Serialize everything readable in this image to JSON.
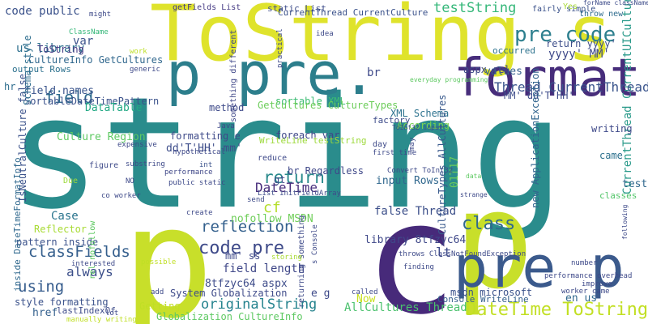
{
  "word_cloud": {
    "words": [
      {
        "text": "string",
        "color": "#2a8c8c",
        "rot": 0
      },
      {
        "text": "p",
        "color": "#c8df2a",
        "rot": 0
      },
      {
        "text": "c",
        "color": "#472a7a",
        "rot": 0
      },
      {
        "text": "p",
        "color": "#c8df2a",
        "rot": 0
      },
      {
        "text": "ToString s",
        "color": "#dfe32c",
        "rot": 0
      },
      {
        "text": "p pre.",
        "color": "#2c7e8c",
        "rot": 0
      },
      {
        "text": "pre p",
        "color": "#3b5a8c",
        "rot": 0
      },
      {
        "text": "format",
        "color": "#472d7b",
        "rot": 0
      },
      {
        "text": "pre code",
        "color": "#2d7f8e",
        "rot": 0
      },
      {
        "text": "CurrentThread CurrentUICulture",
        "color": "#2a9a8a",
        "rot": -90
      },
      {
        "text": "DateTime ToString",
        "color": "#c2df23",
        "rot": 0
      },
      {
        "text": "code pre",
        "color": "#3e4a89",
        "rot": 0
      },
      {
        "text": "reflection",
        "color": "#34608d",
        "rot": 0
      },
      {
        "text": "classFields",
        "color": "#355f8d",
        "rot": 0
      },
      {
        "text": "return",
        "color": "#2a8a8c",
        "rot": 0
      },
      {
        "text": "class",
        "color": "#30698e",
        "rot": 0
      },
      {
        "text": "cf",
        "color": "#b5de2b",
        "rot": 0
      },
      {
        "text": "testString",
        "color": "#35b779",
        "rot": 0
      },
      {
        "text": "Thread CurrentThread",
        "color": "#3a548c",
        "rot": 0
      },
      {
        "text": "always",
        "color": "#3c4f8a",
        "rot": 0
      },
      {
        "text": "using",
        "color": "#365c8d",
        "rot": 0
      },
      {
        "text": "field",
        "color": "#2f6b8e",
        "rot": 0
      },
      {
        "text": "var",
        "color": "#3b528b",
        "rot": 0
      },
      {
        "text": "originalString",
        "color": "#25838e",
        "rot": 0
      },
      {
        "text": "DateTime",
        "color": "#472d7b",
        "rot": 0
      },
      {
        "text": "yyyy' MM'",
        "color": "#3e4989",
        "rot": 0
      },
      {
        "text": "return yyyy'",
        "color": "#3d4e8a",
        "rot": 0
      },
      {
        "text": "MM' dd'T'HH'",
        "color": "#3e4c8a",
        "rot": 0
      },
      {
        "text": "code public",
        "color": "#3b528b",
        "rot": 0
      },
      {
        "text": "us library",
        "color": "#2d708e",
        "rot": 0
      },
      {
        "text": "field names",
        "color": "#3a548c",
        "rot": 0
      },
      {
        "text": "SortableDateTimePattern",
        "color": "#3b528b",
        "rot": 0
      },
      {
        "text": "CultureInfo GetCultures",
        "color": "#31688e",
        "rot": 0
      },
      {
        "text": "output Rows",
        "color": "#2c718e",
        "rot": 0
      },
      {
        "text": "ToString",
        "color": "#443983",
        "rot": 0
      },
      {
        "text": "DataTable",
        "color": "#22a884",
        "rot": 0
      },
      {
        "text": "IsNeutralCulture false",
        "color": "#3b528b",
        "rot": -90
      },
      {
        "text": "Culture Region",
        "color": "#5ec962",
        "rot": 0
      },
      {
        "text": "formatting e",
        "color": "#3e4a89",
        "rot": 0
      },
      {
        "text": "dd'T'HH' mm'",
        "color": "#3d4d8a",
        "rot": 0
      },
      {
        "text": "foreach var",
        "color": "#3f4788",
        "rot": 0
      },
      {
        "text": "XML Schema",
        "color": "#2c728e",
        "rot": 0
      },
      {
        "text": "sortable XML",
        "color": "#3dbc74",
        "rot": 0
      },
      {
        "text": "GetCultures CultureTypes",
        "color": "#6ccd5a",
        "rot": 0
      },
      {
        "text": "According",
        "color": "#7ad151",
        "rot": 0
      },
      {
        "text": "method",
        "color": "#3e4a89",
        "rot": 0
      },
      {
        "text": "br Regardless",
        "color": "#3f4889",
        "rot": 0
      },
      {
        "text": "WriteLine testString",
        "color": "#9dd93b",
        "rot": 0
      },
      {
        "text": "factory",
        "color": "#3e4c8a",
        "rot": 0
      },
      {
        "text": "01T17",
        "color": "#6ccd5a",
        "rot": -90
      },
      {
        "text": "CultureTypes AllCultures",
        "color": "#38598c",
        "rot": -90
      },
      {
        "text": "new ApplicationException",
        "color": "#32658e",
        "rot": -90
      },
      {
        "text": "values",
        "color": "#34608d",
        "rot": 0
      },
      {
        "text": "aspx rel",
        "color": "#3e4a89",
        "rot": 0
      },
      {
        "text": "occurred",
        "color": "#2c728e",
        "rot": 0
      },
      {
        "text": "Case",
        "color": "#2b758e",
        "rot": 0
      },
      {
        "text": "Reflector",
        "color": "#a8db34",
        "rot": 0
      },
      {
        "text": "pattern inside",
        "color": "#3b528b",
        "rot": 0
      },
      {
        "text": "field length",
        "color": "#3f4788",
        "rot": 0
      },
      {
        "text": "8tfzyc64 aspx",
        "color": "#3e4c8a",
        "rot": 0
      },
      {
        "text": "System Globalization",
        "color": "#3e4a89",
        "rot": 0
      },
      {
        "text": "Getting",
        "color": "#c0df25",
        "rot": 0
      },
      {
        "text": "Globalization CultureInfo",
        "color": "#5ec962",
        "rot": 0
      },
      {
        "text": "lastIndexOf",
        "color": "#3e4c8a",
        "rot": 0
      },
      {
        "text": "href",
        "color": "#34608d",
        "rot": 0
      },
      {
        "text": "style formatting",
        "color": "#3b528b",
        "rot": 0
      },
      {
        "text": "inside DateTimeFormatInfo",
        "color": "#30698e",
        "rot": -90
      },
      {
        "text": "AllCultures Thread",
        "color": "#4ac16d",
        "rot": 0
      },
      {
        "text": "library 8tfzyc64",
        "color": "#3f4889",
        "rot": 0
      },
      {
        "text": "false Thread",
        "color": "#3c4f8a",
        "rot": 0
      },
      {
        "text": "input Rows",
        "color": "#31688e",
        "rot": 0
      },
      {
        "text": "mm' ss",
        "color": "#3e4989",
        "rot": 0
      },
      {
        "text": "nofollow MSDN",
        "color": "#6ece58",
        "rot": 0
      },
      {
        "text": "msdn microsoft",
        "color": "#3b528b",
        "rot": 0
      },
      {
        "text": "Console WriteLine",
        "color": "#35608d",
        "rot": 0
      },
      {
        "text": "lt",
        "color": "#3e4a89",
        "rot": 0
      },
      {
        "text": "e g",
        "color": "#3e4989",
        "rot": 0
      },
      {
        "text": "en us",
        "color": "#31688e",
        "rot": 0
      },
      {
        "text": "Now",
        "color": "#c8e020",
        "rot": 0
      },
      {
        "text": "came",
        "color": "#2d718e",
        "rot": 0
      },
      {
        "text": "test",
        "color": "#31688e",
        "rot": 0
      },
      {
        "text": "writing",
        "color": "#3e4989",
        "rot": 0
      },
      {
        "text": "classes",
        "color": "#52c569",
        "rot": 0
      },
      {
        "text": "Schema style",
        "color": "#2e6e8e",
        "rot": -90
      },
      {
        "text": "hr",
        "color": "#2e6d8e",
        "rot": 0
      },
      {
        "text": "rel nofollow",
        "color": "#5ec962",
        "rot": -90
      },
      {
        "text": "returning something",
        "color": "#3e4a89",
        "rot": -90
      },
      {
        "text": "something different",
        "color": "#3f4788",
        "rot": -90
      },
      {
        "text": "static List",
        "color": "#3e4c8a",
        "rot": 0
      },
      {
        "text": "CurrentThread CurrentCulture",
        "color": "#3b528b",
        "rot": 0
      },
      {
        "text": "getFields List",
        "color": "#443983",
        "rot": 0
      },
      {
        "text": "might",
        "color": "#3e4a89",
        "rot": 0
      },
      {
        "text": "fairly simple",
        "color": "#3b528b",
        "rot": 0
      },
      {
        "text": "throw new",
        "color": "#2f6c8e",
        "rot": 0
      },
      {
        "text": "Yes",
        "color": "#a8db34",
        "rot": 0
      },
      {
        "text": "forName className",
        "color": "#3e4c8a",
        "rot": 0
      },
      {
        "text": "work",
        "color": "#bddf26",
        "rot": 0
      },
      {
        "text": "ClassName",
        "color": "#35b779",
        "rot": 0
      },
      {
        "text": "idea",
        "color": "#3e4a89",
        "rot": 0
      },
      {
        "text": "practical",
        "color": "#3e4a89",
        "rot": -90
      },
      {
        "text": "br",
        "color": "#3e4989",
        "rot": 0
      },
      {
        "text": "generic",
        "color": "#3e4989",
        "rot": 0
      },
      {
        "text": "Java",
        "color": "#3e4989",
        "rot": 0
      },
      {
        "text": "performance",
        "color": "#3f4788",
        "rot": 0
      },
      {
        "text": "public static",
        "color": "#3e4a89",
        "rot": 0
      },
      {
        "text": "hypothetical",
        "color": "#3e4989",
        "rot": 0
      },
      {
        "text": "int",
        "color": "#3b528b",
        "rot": 0
      },
      {
        "text": "substring",
        "color": "#3e4a89",
        "rot": 0
      },
      {
        "text": "expensive",
        "color": "#3e4989",
        "rot": 0
      },
      {
        "text": "figure",
        "color": "#3e4a89",
        "rot": 0
      },
      {
        "text": "Due",
        "color": "#9dd93b",
        "rot": 0
      },
      {
        "text": "NO",
        "color": "#3e4989",
        "rot": 0
      },
      {
        "text": "co worker",
        "color": "#3e4a89",
        "rot": 0
      },
      {
        "text": "reduce",
        "color": "#3e4989",
        "rot": 0
      },
      {
        "text": "gt",
        "color": "#3e4a89",
        "rot": 0
      },
      {
        "text": "List initFieldArray",
        "color": "#3e4c8a",
        "rot": 0
      },
      {
        "text": "ToInt32 input",
        "color": "#3e4989",
        "rot": 0
      },
      {
        "text": "day",
        "color": "#3e4a89",
        "rot": 0
      },
      {
        "text": "first time",
        "color": "#3e4a89",
        "rot": 0
      },
      {
        "text": "data",
        "color": "#5ec962",
        "rot": 0
      },
      {
        "text": "Convert ToInt32",
        "color": "#3e4a89",
        "rot": 0
      },
      {
        "text": "strange",
        "color": "#3e4a89",
        "rot": 0
      },
      {
        "text": "create",
        "color": "#3e4989",
        "rot": 0
      },
      {
        "text": "send",
        "color": "#3e4a89",
        "rot": 0
      },
      {
        "text": "storing",
        "color": "#a8db34",
        "rot": 0
      },
      {
        "text": "interested",
        "color": "#3e4a89",
        "rot": 0
      },
      {
        "text": "number",
        "color": "#3e4a89",
        "rot": 0
      },
      {
        "text": "finding",
        "color": "#3e4a89",
        "rot": 0
      },
      {
        "text": "throws ClassNotFoundException",
        "color": "#3e4a89",
        "rot": 0
      },
      {
        "text": "performance overhead",
        "color": "#3e4989",
        "rot": 0
      },
      {
        "text": "improve",
        "color": "#3e4a89",
        "rot": 0
      },
      {
        "text": "worker came",
        "color": "#3e4a89",
        "rot": 0
      },
      {
        "text": "called",
        "color": "#3e4989",
        "rot": 0
      },
      {
        "text": "add",
        "color": "#3e4a89",
        "rot": 0
      },
      {
        "text": "lot",
        "color": "#3e4989",
        "rot": 0
      },
      {
        "text": "possible",
        "color": "#c0df25",
        "rot": 0
      },
      {
        "text": "manually writing",
        "color": "#c0df25",
        "rot": 0
      },
      {
        "text": "s Console",
        "color": "#3e4a89",
        "rot": -90
      },
      {
        "text": "may",
        "color": "#3e4989",
        "rot": -90
      },
      {
        "text": "following",
        "color": "#3e4a89",
        "rot": -90
      },
      {
        "text": "everyday programming",
        "color": "#5ec962",
        "rot": 0
      }
    ]
  }
}
